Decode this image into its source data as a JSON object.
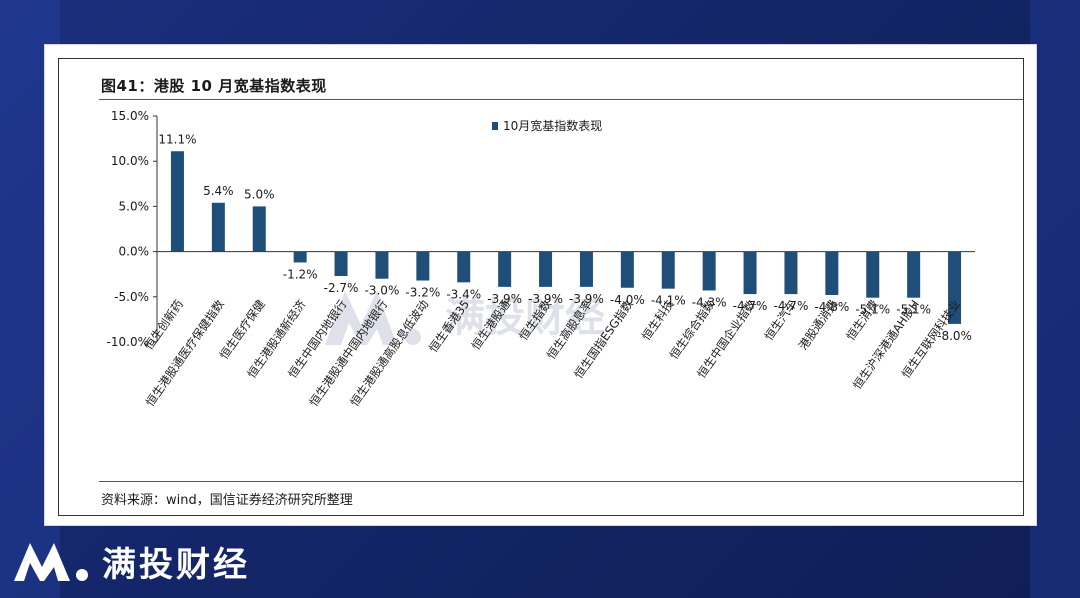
{
  "figure": {
    "title": "图41：港股 10 月宽基指数表现",
    "source": "资料来源：wind，国信证券经济研究所整理"
  },
  "brand": {
    "name": "满投财经",
    "watermark": "满投财经"
  },
  "colors": {
    "bar": "#1f4e79",
    "background": "#152a6e"
  },
  "chart_data": {
    "type": "bar",
    "categories": [
      "恒生创新药",
      "恒生港股通医疗保健指数",
      "恒生医疗保健",
      "恒生港股通新经济",
      "恒生中国内地银行",
      "恒生港股通中国内地银行",
      "恒生港股通高股息低波动",
      "恒生香港35",
      "恒生港股通",
      "恒生指数",
      "恒生高股息率",
      "恒生国指ESG指数",
      "恒生科技",
      "恒生综合指数",
      "恒生中国企业指数",
      "恒生汽车",
      "港股通消费",
      "恒生消费",
      "恒生沪深港通AH股H",
      "恒生互联网科技业"
    ],
    "series": [
      {
        "name": "10月宽基指数表现",
        "values": [
          11.1,
          5.4,
          5.0,
          -1.2,
          -2.7,
          -3.0,
          -3.2,
          -3.4,
          -3.9,
          -3.9,
          -3.9,
          -4.0,
          -4.1,
          -4.3,
          -4.7,
          -4.7,
          -4.8,
          -5.1,
          -5.1,
          -8.0
        ]
      }
    ],
    "data_labels": [
      "11.1%",
      "5.4%",
      "5.0%",
      "-1.2%",
      "-2.7%",
      "-3.0%",
      "-3.2%",
      "-3.4%",
      "-3.9%",
      "-3.9%",
      "-3.9%",
      "-4.0%",
      "-4.1%",
      "-4.3%",
      "-4.7%",
      "-4.7%",
      "-4.8%",
      "-5.1%",
      "-5.1%",
      "-8.0%"
    ],
    "yticks": [
      15,
      10,
      5,
      0,
      -5,
      -10
    ],
    "ytick_labels": [
      "15.0%",
      "10.0%",
      "5.0%",
      "0.0%",
      "-5.0%",
      "-10.0%"
    ],
    "ylim": [
      -10,
      15
    ],
    "legend_position": "top-center",
    "grid": false
  }
}
